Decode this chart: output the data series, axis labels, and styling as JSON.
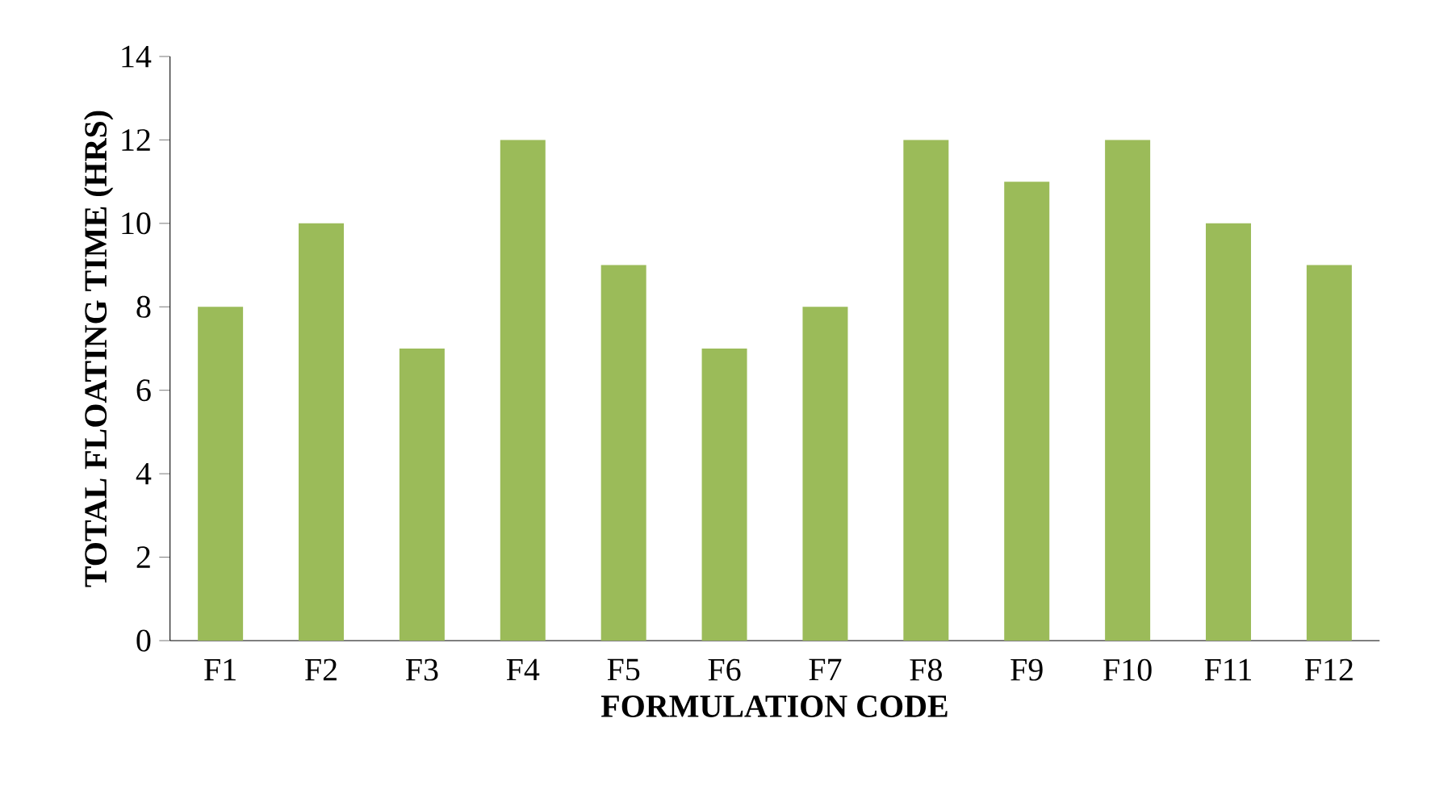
{
  "chart_data": {
    "type": "bar",
    "xlabel": "FORMULATION CODE",
    "ylabel": "TOTAL FLOATING TIME (HRS)",
    "categories": [
      "F1",
      "F2",
      "F3",
      "F4",
      "F5",
      "F6",
      "F7",
      "F8",
      "F9",
      "F10",
      "F11",
      "F12"
    ],
    "values": [
      8,
      10,
      7,
      12,
      9,
      7,
      8,
      12,
      11,
      12,
      10,
      9
    ],
    "color": "#9bbb59",
    "ylim": [
      0,
      14
    ],
    "yticks": [
      0,
      2,
      4,
      6,
      8,
      10,
      12,
      14
    ]
  }
}
